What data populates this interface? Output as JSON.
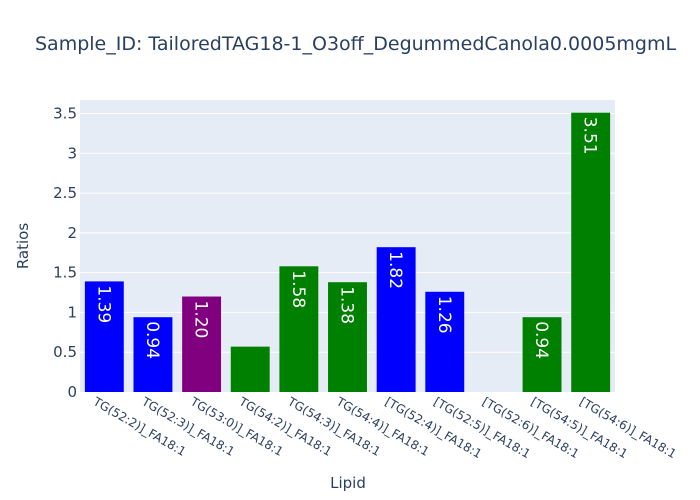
{
  "chart_data": {
    "type": "bar",
    "title": "Sample_ID: TailoredTAG18-1_O3off_DegummedCanola0.0005mgmL",
    "xlabel": "Lipid",
    "ylabel": "Ratios",
    "ylim": [
      0,
      3.67
    ],
    "yticks": [
      0,
      0.5,
      1,
      1.5,
      2,
      2.5,
      3,
      3.5
    ],
    "ytick_labels": [
      "0",
      "0.5",
      "1",
      "1.5",
      "2",
      "2.5",
      "3",
      "3.5"
    ],
    "categories": [
      "TG(52:2)]_FA18:1",
      "TG(52:3)]_FA18:1",
      "TG(53:0)]_FA18:1",
      "TG(54:2)]_FA18:1",
      "TG(54:3)]_FA18:1",
      "TG(54:4)]_FA18:1",
      "[TG(52:4)]_FA18:1",
      "[TG(52:5)]_FA18:1",
      "[TG(52:6)]_FA18:1",
      "[TG(54:5)]_FA18:1",
      "[TG(54:6)]_FA18:1"
    ],
    "values": [
      1.39,
      0.94,
      1.2,
      0.57,
      1.58,
      1.38,
      1.82,
      1.26,
      null,
      0.94,
      3.51
    ],
    "labels": [
      "1.39",
      "0.94",
      "1.20",
      "",
      "1.58",
      "1.38",
      "1.82",
      "1.26",
      "",
      "0.94",
      "3.51"
    ],
    "colors": [
      "#0000ff",
      "#0000ff",
      "#800080",
      "#008000",
      "#008000",
      "#008000",
      "#0000ff",
      "#0000ff",
      "#0000ff",
      "#008000",
      "#008000"
    ],
    "grid": true,
    "legend": "none"
  },
  "style": {
    "plot_bg": "#e5ecf6",
    "grid_color": "#ffffff",
    "text_color": "#2a3f5f",
    "label_color": "#ffffff"
  }
}
